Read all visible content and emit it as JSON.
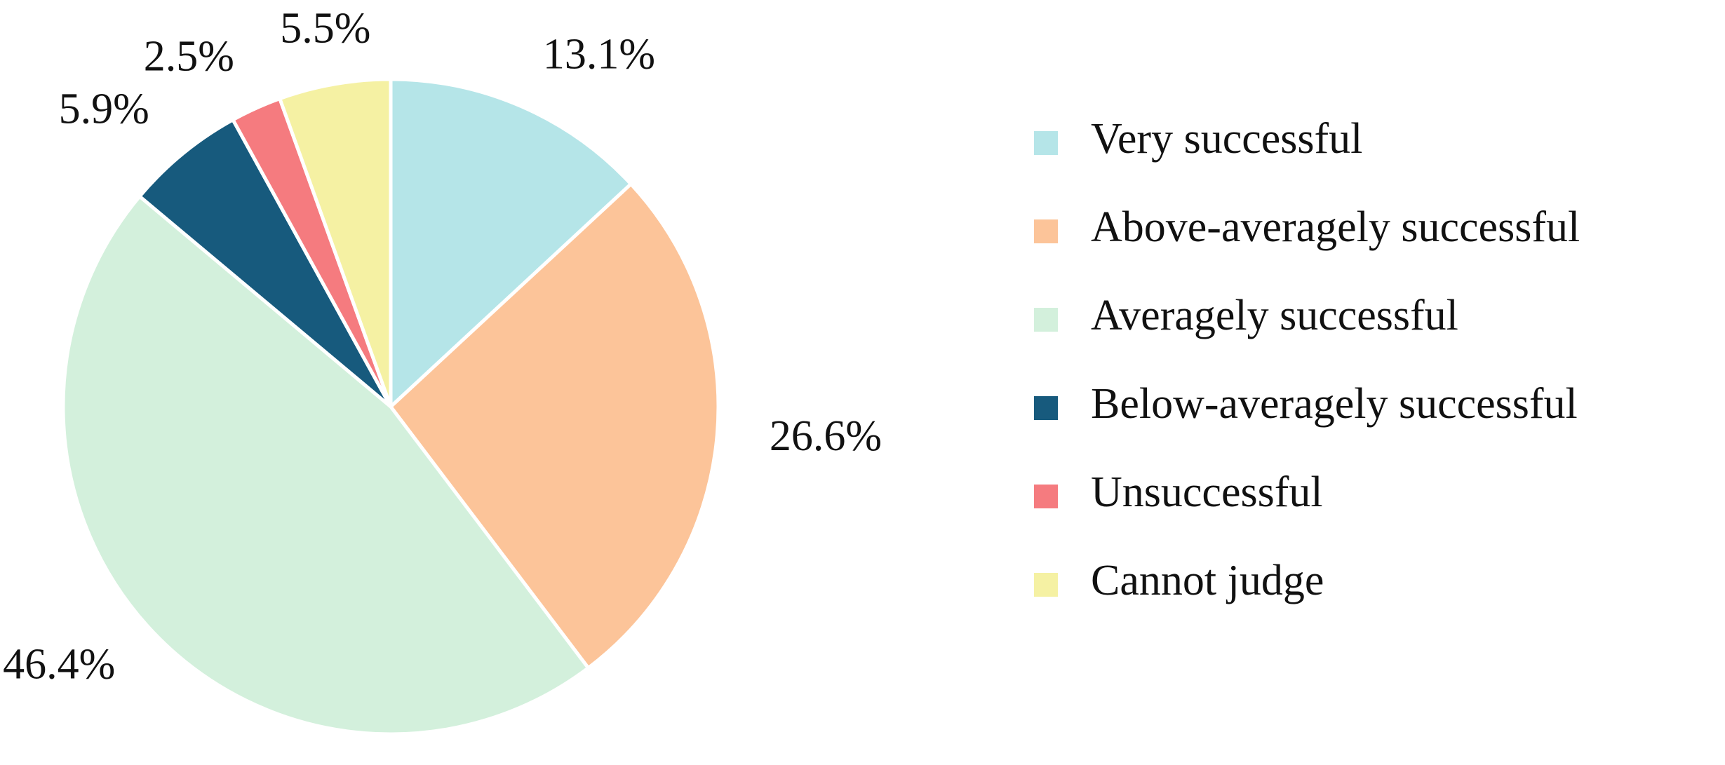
{
  "chart_data": {
    "type": "pie",
    "categories": [
      "Very successful",
      "Above-averagely successful",
      "Averagely successful",
      "Below-averagely successful",
      "Unsuccessful",
      "Cannot judge"
    ],
    "values": [
      13.1,
      26.6,
      46.4,
      5.9,
      2.5,
      5.5
    ],
    "value_labels": [
      "13.1%",
      "26.6%",
      "46.4%",
      "5.9%",
      "2.5%",
      "5.5%"
    ],
    "colors": [
      "#b5e5e8",
      "#fcc499",
      "#d3f0dc",
      "#175a7d",
      "#f57b7f",
      "#f5f1a3"
    ],
    "legend": "right"
  }
}
